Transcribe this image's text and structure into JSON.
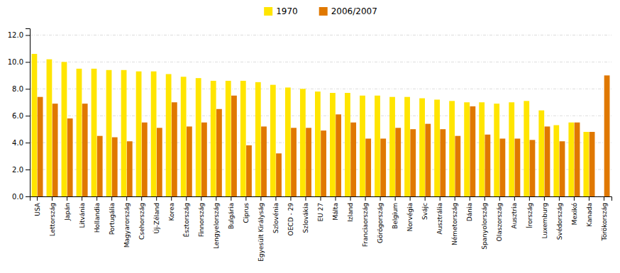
{
  "chart_data": {
    "type": "bar",
    "categories": [
      "USA",
      "Lettország",
      "Japán",
      "Litvánia",
      "Hollandia",
      "Portugália",
      "Magyarország",
      "Csehország",
      "Új-Zéland",
      "Korea",
      "Észtország",
      "Finnország",
      "Lengyelország",
      "Bulgária",
      "Ciprus",
      "Egyesült Királyság",
      "Szlovénia",
      "OECD - 29",
      "Szlovákia",
      "EU 27",
      "Málta",
      "Izland",
      "Franciaország",
      "Görögország",
      "Belgium",
      "Norvégia",
      "Svájc",
      "Ausztrália",
      "Németország",
      "Dánia",
      "Spanyolország",
      "Olaszország",
      "Ausztria",
      "Írország",
      "Luxemburg",
      "Svédország",
      "Mexikó",
      "Kanada",
      "Törökország"
    ],
    "series": [
      {
        "name": "1970",
        "color": "#FFE500",
        "values": [
          10.6,
          10.2,
          10.0,
          9.5,
          9.5,
          9.4,
          9.4,
          9.3,
          9.3,
          9.1,
          8.9,
          8.8,
          8.6,
          8.6,
          8.6,
          8.5,
          8.3,
          8.1,
          8.0,
          7.8,
          7.7,
          7.7,
          7.5,
          7.5,
          7.4,
          7.4,
          7.3,
          7.2,
          7.1,
          7.0,
          7.0,
          6.9,
          7.0,
          7.1,
          6.4,
          5.3,
          5.5,
          4.8,
          0.0
        ]
      },
      {
        "name": "2006/2007",
        "color": "#E07800",
        "values": [
          7.4,
          6.9,
          5.8,
          6.9,
          4.5,
          4.4,
          4.1,
          5.5,
          5.1,
          7.0,
          5.2,
          5.5,
          6.5,
          7.5,
          3.8,
          5.2,
          3.2,
          5.1,
          5.1,
          4.9,
          6.1,
          5.5,
          4.3,
          4.3,
          5.1,
          5.0,
          5.4,
          5.0,
          4.5,
          6.7,
          4.6,
          4.3,
          4.3,
          4.2,
          5.2,
          4.1,
          5.5,
          4.8,
          9.0
        ]
      }
    ],
    "ylim": [
      0,
      12.5
    ],
    "yticks": [
      {
        "value": 0.0,
        "label": "0.0"
      },
      {
        "value": 2.0,
        "label": "2.0"
      },
      {
        "value": 4.0,
        "label": "4.0"
      },
      {
        "value": 6.0,
        "label": "6.0"
      },
      {
        "value": 8.0,
        "label": "8.0"
      },
      {
        "value": 10.0,
        "label": "10.0"
      },
      {
        "value": 12.0,
        "label": "12.0"
      }
    ],
    "grid": true,
    "legend": "top"
  }
}
